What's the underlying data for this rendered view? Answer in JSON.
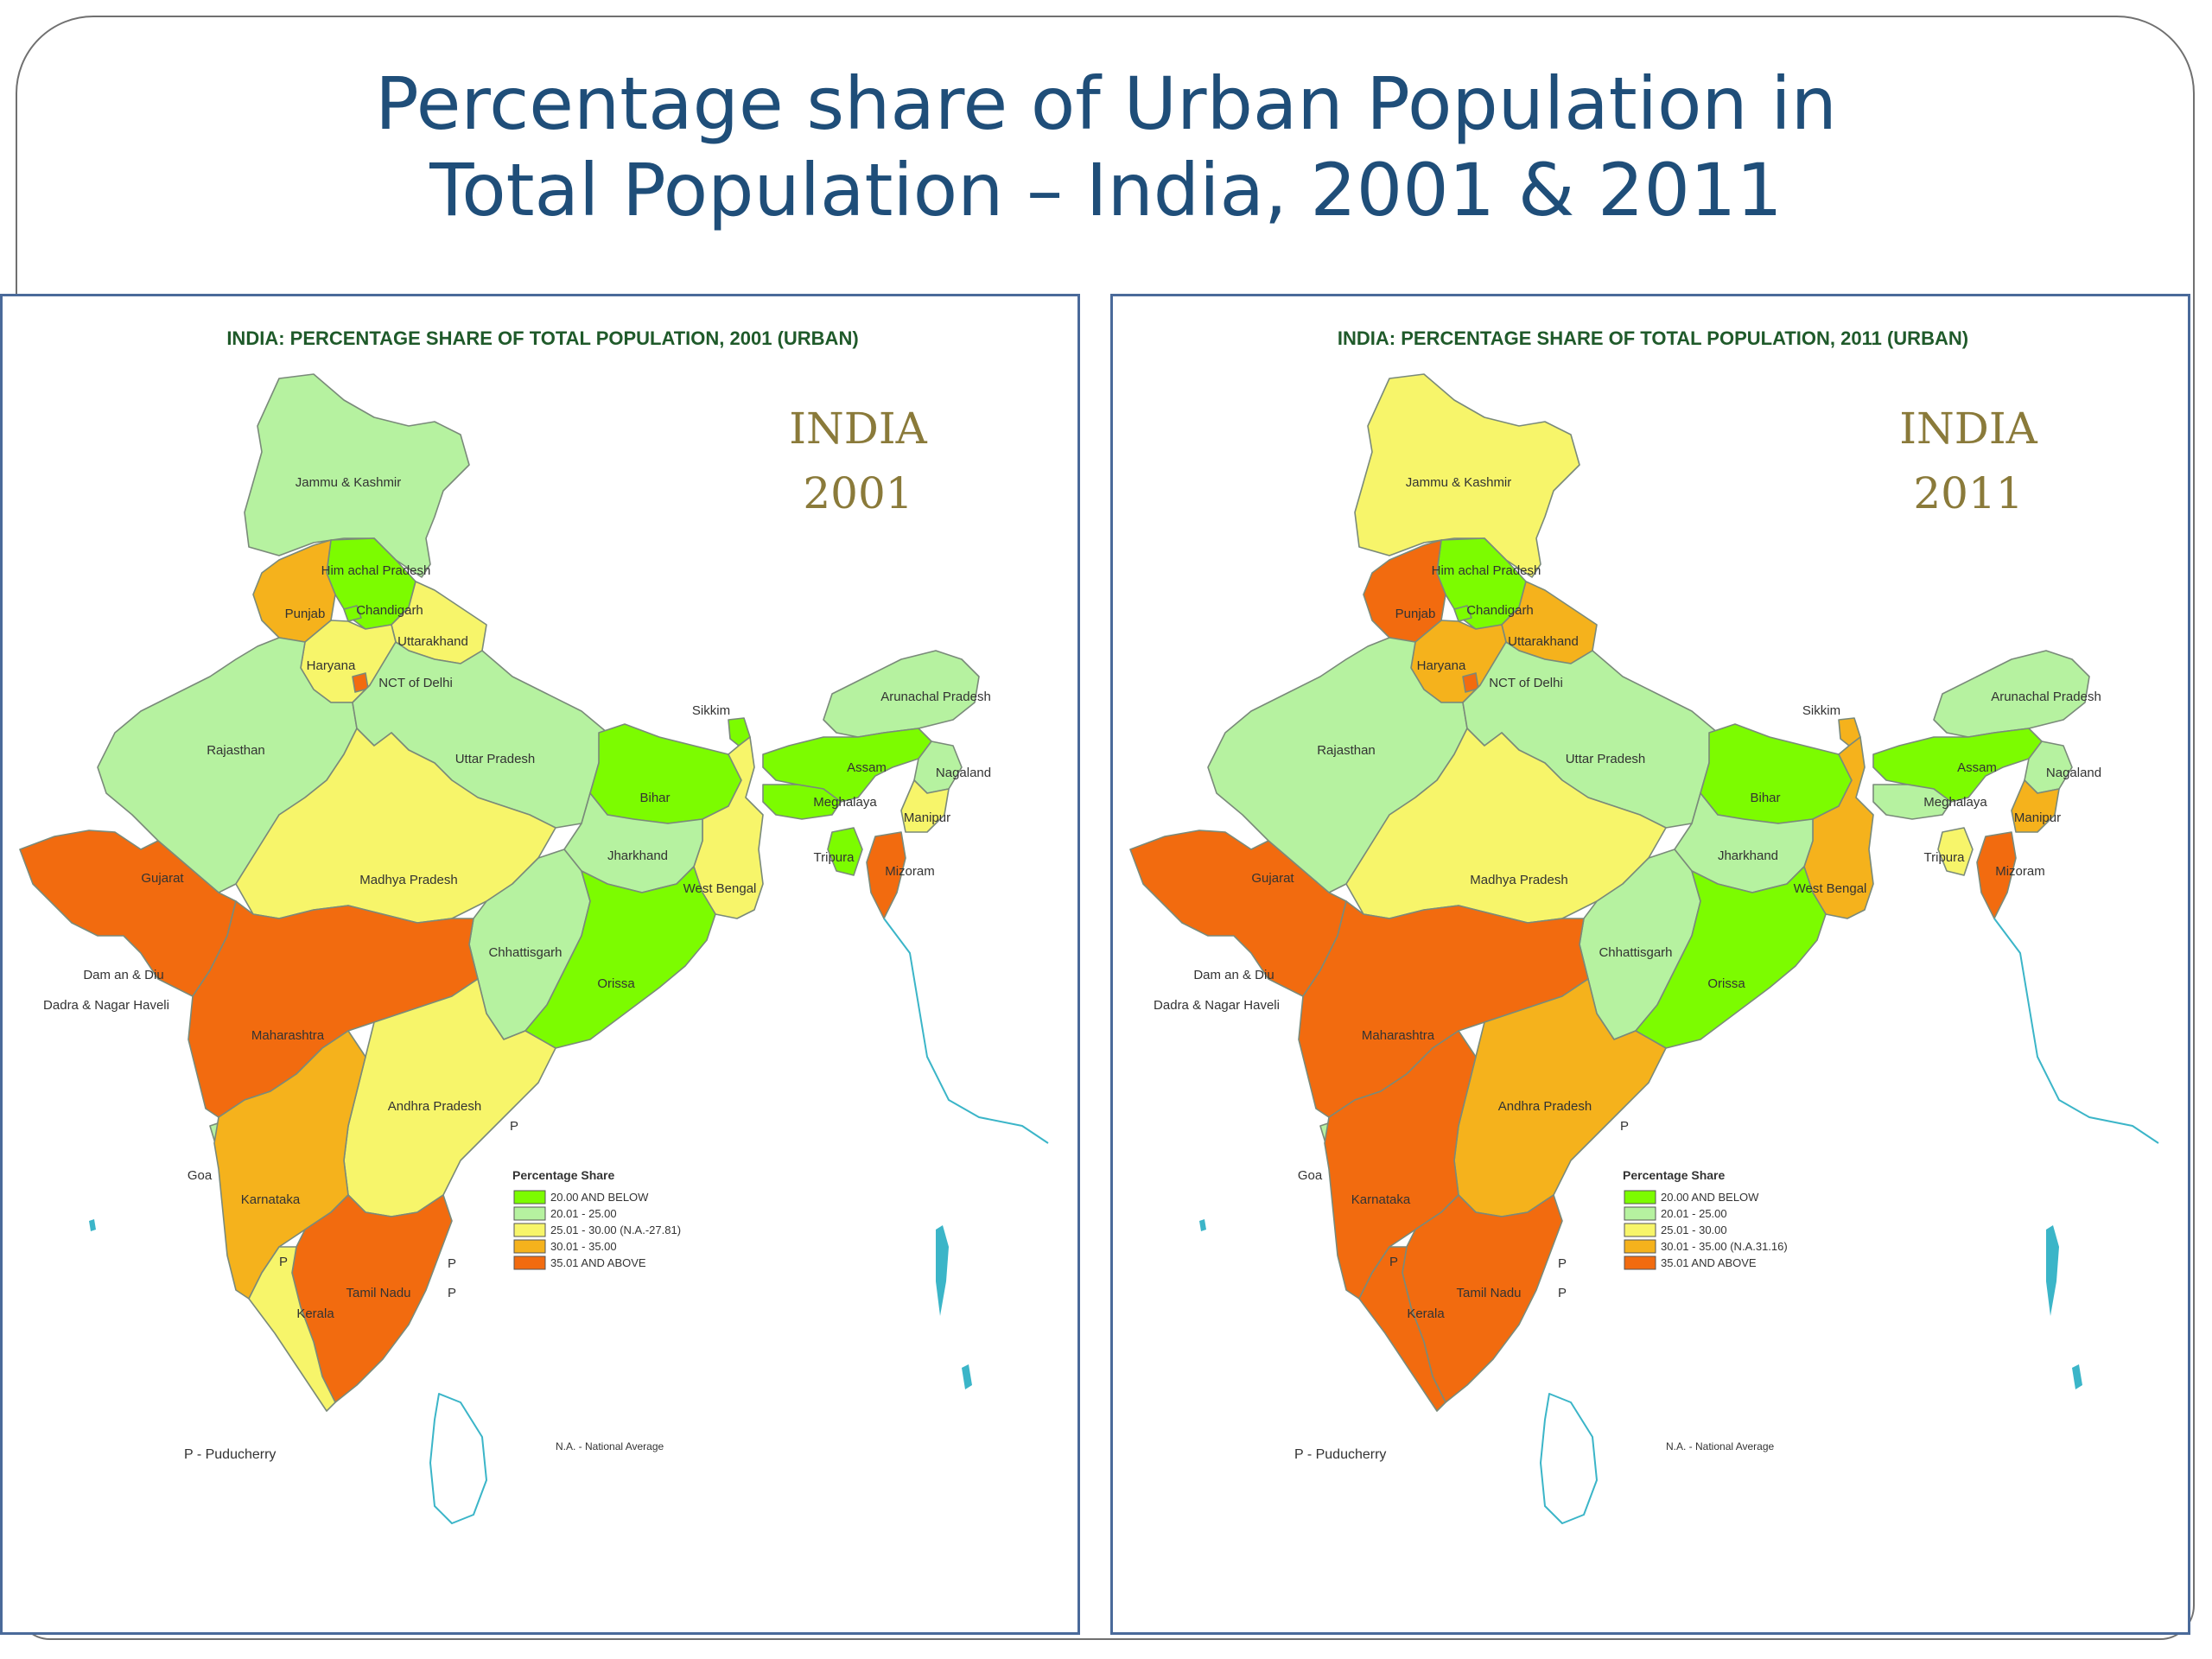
{
  "slide": {
    "title_line1": "Percentage share of Urban Population in",
    "title_line2": "Total Population – India, 2001 & 2011"
  },
  "colors": {
    "c1": "#7CFC00",
    "c2": "#B6F2A0",
    "c3": "#F7F56A",
    "c4": "#F5B21C",
    "c5": "#F26B0F",
    "coast": "#3BB5C8",
    "border": "#7a8a7a"
  },
  "maps": [
    {
      "header": "INDIA: PERCENTAGE SHARE OF TOTAL POPULATION, 2001 (URBAN)",
      "india": "INDIA",
      "year": "2001",
      "states": {
        "jk": "Jammu & Kashmir",
        "hp": "Him achal Pradesh",
        "pb": "Punjab",
        "ch": "Chandigarh",
        "uk": "Uttarakhand",
        "hr": "Haryana",
        "dl": "NCT of Delhi",
        "rj": "Rajasthan",
        "up": "Uttar Pradesh",
        "br": "Bihar",
        "sk": "Sikkim",
        "ar": "Arunachal Pradesh",
        "as": "Assam",
        "nl": "Nagaland",
        "ml": "Meghalaya",
        "mn": "Manipur",
        "tr": "Tripura",
        "mz": "Mizoram",
        "wb": "West Bengal",
        "jh": "Jharkhand",
        "gj": "Gujarat",
        "mp": "Madhya Pradesh",
        "cg": "Chhattisgarh",
        "or": "Orissa",
        "dd": "Dam an & Diu",
        "dnh": "Dadra & Nagar Haveli",
        "mh": "Maharashtra",
        "ap": "Andhra Pradesh",
        "ga": "Goa",
        "ka": "Karnataka",
        "tn": "Tamil Nadu",
        "kl": "Kerala"
      },
      "fills": {
        "jk": "c2",
        "hp": "c1",
        "pb": "c4",
        "ch": "c1",
        "uk": "c3",
        "hr": "c3",
        "dl": "c5",
        "rj": "c2",
        "up": "c2",
        "br": "c1",
        "sk": "c1",
        "ar": "c2",
        "as": "c1",
        "nl": "c2",
        "ml": "c1",
        "mn": "c3",
        "tr": "c1",
        "mz": "c5",
        "wb": "c3",
        "jh": "c2",
        "gj": "c5",
        "mp": "c3",
        "cg": "c2",
        "or": "c1",
        "mh": "c5",
        "ap": "c3",
        "ka": "c4",
        "tn": "c5",
        "kl": "c3"
      },
      "puducherry_marker": "P",
      "legend": {
        "title": "Percentage Share",
        "items": [
          "20.00 AND BELOW",
          "20.01 - 25.00",
          "25.01 - 30.00 (N.A.-27.81)",
          "30.01 - 35.00",
          "35.01 AND ABOVE"
        ]
      },
      "puducherry_note": "P - Puducherry",
      "na_note": "N.A. - National Average"
    },
    {
      "header": "INDIA: PERCENTAGE SHARE OF TOTAL POPULATION, 2011 (URBAN)",
      "india": "INDIA",
      "year": "2011",
      "states": {
        "jk": "Jammu & Kashmir",
        "hp": "Him achal Pradesh",
        "pb": "Punjab",
        "ch": "Chandigarh",
        "uk": "Uttarakhand",
        "hr": "Haryana",
        "dl": "NCT of Delhi",
        "rj": "Rajasthan",
        "up": "Uttar Pradesh",
        "br": "Bihar",
        "sk": "Sikkim",
        "ar": "Arunachal Pradesh",
        "as": "Assam",
        "nl": "Nagaland",
        "ml": "Meghalaya",
        "mn": "Manipur",
        "tr": "Tripura",
        "mz": "Mizoram",
        "wb": "West Bengal",
        "jh": "Jharkhand",
        "gj": "Gujarat",
        "mp": "Madhya Pradesh",
        "cg": "Chhattisgarh",
        "or": "Orissa",
        "dd": "Dam an & Diu",
        "dnh": "Dadra & Nagar Haveli",
        "mh": "Maharashtra",
        "ap": "Andhra Pradesh",
        "ga": "Goa",
        "ka": "Karnataka",
        "tn": "Tamil Nadu",
        "kl": "Kerala"
      },
      "fills": {
        "jk": "c3",
        "hp": "c1",
        "pb": "c5",
        "ch": "c1",
        "uk": "c4",
        "hr": "c4",
        "dl": "c5",
        "rj": "c2",
        "up": "c2",
        "br": "c1",
        "sk": "c4",
        "ar": "c2",
        "as": "c1",
        "nl": "c2",
        "ml": "c2",
        "mn": "c4",
        "tr": "c3",
        "mz": "c5",
        "wb": "c4",
        "jh": "c2",
        "gj": "c5",
        "mp": "c3",
        "cg": "c2",
        "or": "c1",
        "mh": "c5",
        "ap": "c4",
        "ka": "c5",
        "tn": "c5",
        "kl": "c5"
      },
      "puducherry_marker": "P",
      "legend": {
        "title": "Percentage Share",
        "items": [
          "20.00 AND BELOW",
          "20.01 - 25.00",
          "25.01 - 30.00",
          "30.01 - 35.00 (N.A.31.16)",
          "35.01 AND ABOVE"
        ]
      },
      "puducherry_note": "P - Puducherry",
      "na_note": "N.A. - National Average"
    }
  ]
}
